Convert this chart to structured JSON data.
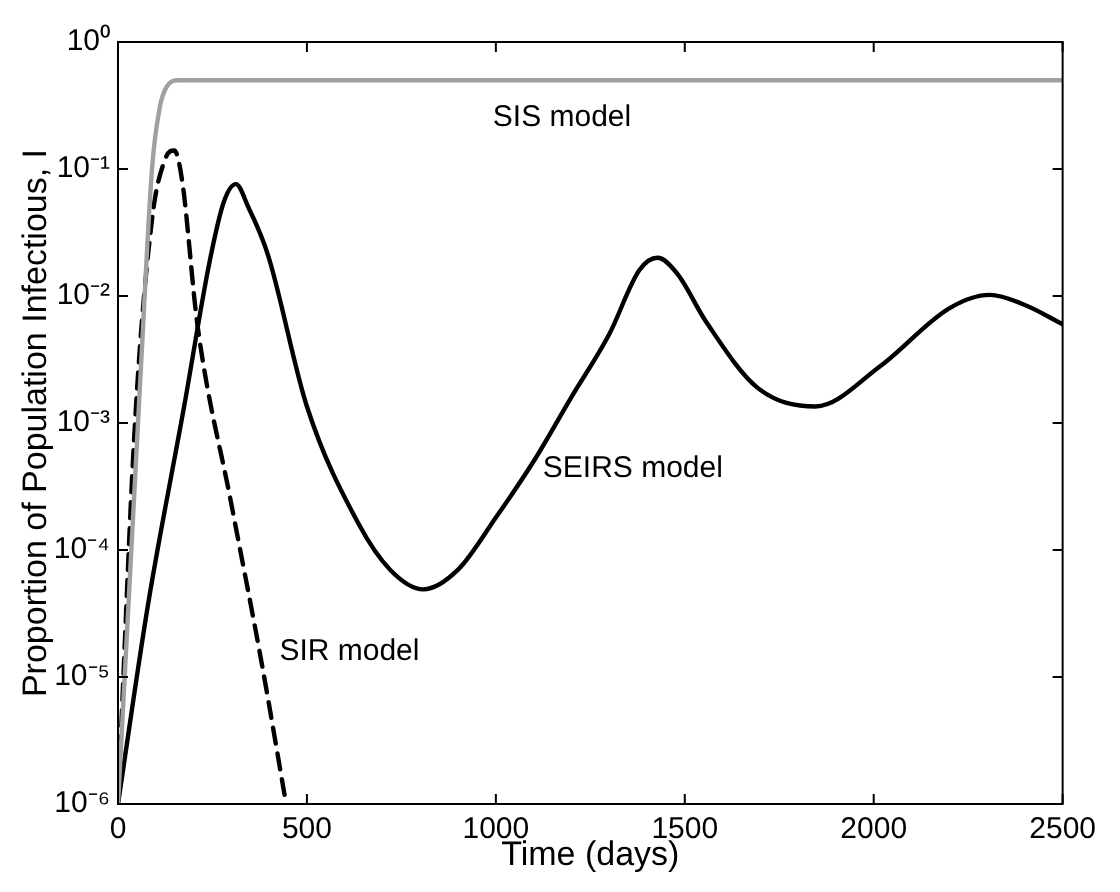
{
  "chart_data": {
    "type": "line",
    "xlabel": "Time (days)",
    "ylabel": "Proportion of Population Infectious, I",
    "log": "y",
    "grid": false,
    "legend": false,
    "marker": "none",
    "xlim": [
      0,
      2500
    ],
    "xticks": [
      0,
      500,
      1000,
      1500,
      2000,
      2500
    ],
    "ylim": [
      1e-06,
      1
    ],
    "yticks": [
      {
        "value": 1e-06,
        "label": "10⁻⁶"
      },
      {
        "value": 1e-05,
        "label": "10⁻⁵"
      },
      {
        "value": 0.0001,
        "label": "10⁻⁴"
      },
      {
        "value": 0.001,
        "label": "10⁻³"
      },
      {
        "value": 0.01,
        "label": "10⁻²"
      },
      {
        "value": 0.1,
        "label": "10⁻¹"
      },
      {
        "value": 1,
        "label": "10⁰"
      }
    ],
    "series": [
      {
        "name": "SIS model",
        "color": "#a0a0a0",
        "line_style": "solid",
        "x": [
          0,
          30,
          60,
          90,
          110,
          130,
          160,
          2500
        ],
        "values": [
          1e-06,
          5e-05,
          0.0025,
          0.1,
          0.3,
          0.45,
          0.5,
          0.5
        ]
      },
      {
        "name": "SEIRS model",
        "color": "#000000",
        "line_style": "solid",
        "x": [
          0,
          80,
          175,
          243,
          280,
          312,
          345,
          397,
          500,
          637,
          720,
          808,
          900,
          1000,
          1100,
          1200,
          1300,
          1380,
          1428,
          1480,
          1556,
          1692,
          1846,
          2017,
          2200,
          2307,
          2400,
          2500
        ],
        "values": [
          1e-06,
          3.8e-05,
          0.00135,
          0.019,
          0.055,
          0.076,
          0.05,
          0.021,
          0.00135,
          0.00016,
          7e-05,
          4.9e-05,
          7e-05,
          0.00018,
          0.0005,
          0.0016,
          0.005,
          0.016,
          0.02,
          0.015,
          0.0063,
          0.0019,
          0.00135,
          0.0028,
          0.008,
          0.0102,
          0.0085,
          0.006
        ]
      },
      {
        "name": "SIR model",
        "color": "#000000",
        "line_style": "dashed",
        "x": [
          0,
          45,
          90,
          125,
          149,
          170,
          210,
          300,
          380,
          445
        ],
        "values": [
          1e-06,
          0.001,
          0.04,
          0.12,
          0.14,
          0.08,
          0.006,
          0.00023,
          1.3e-05,
          1e-06
        ]
      }
    ]
  }
}
